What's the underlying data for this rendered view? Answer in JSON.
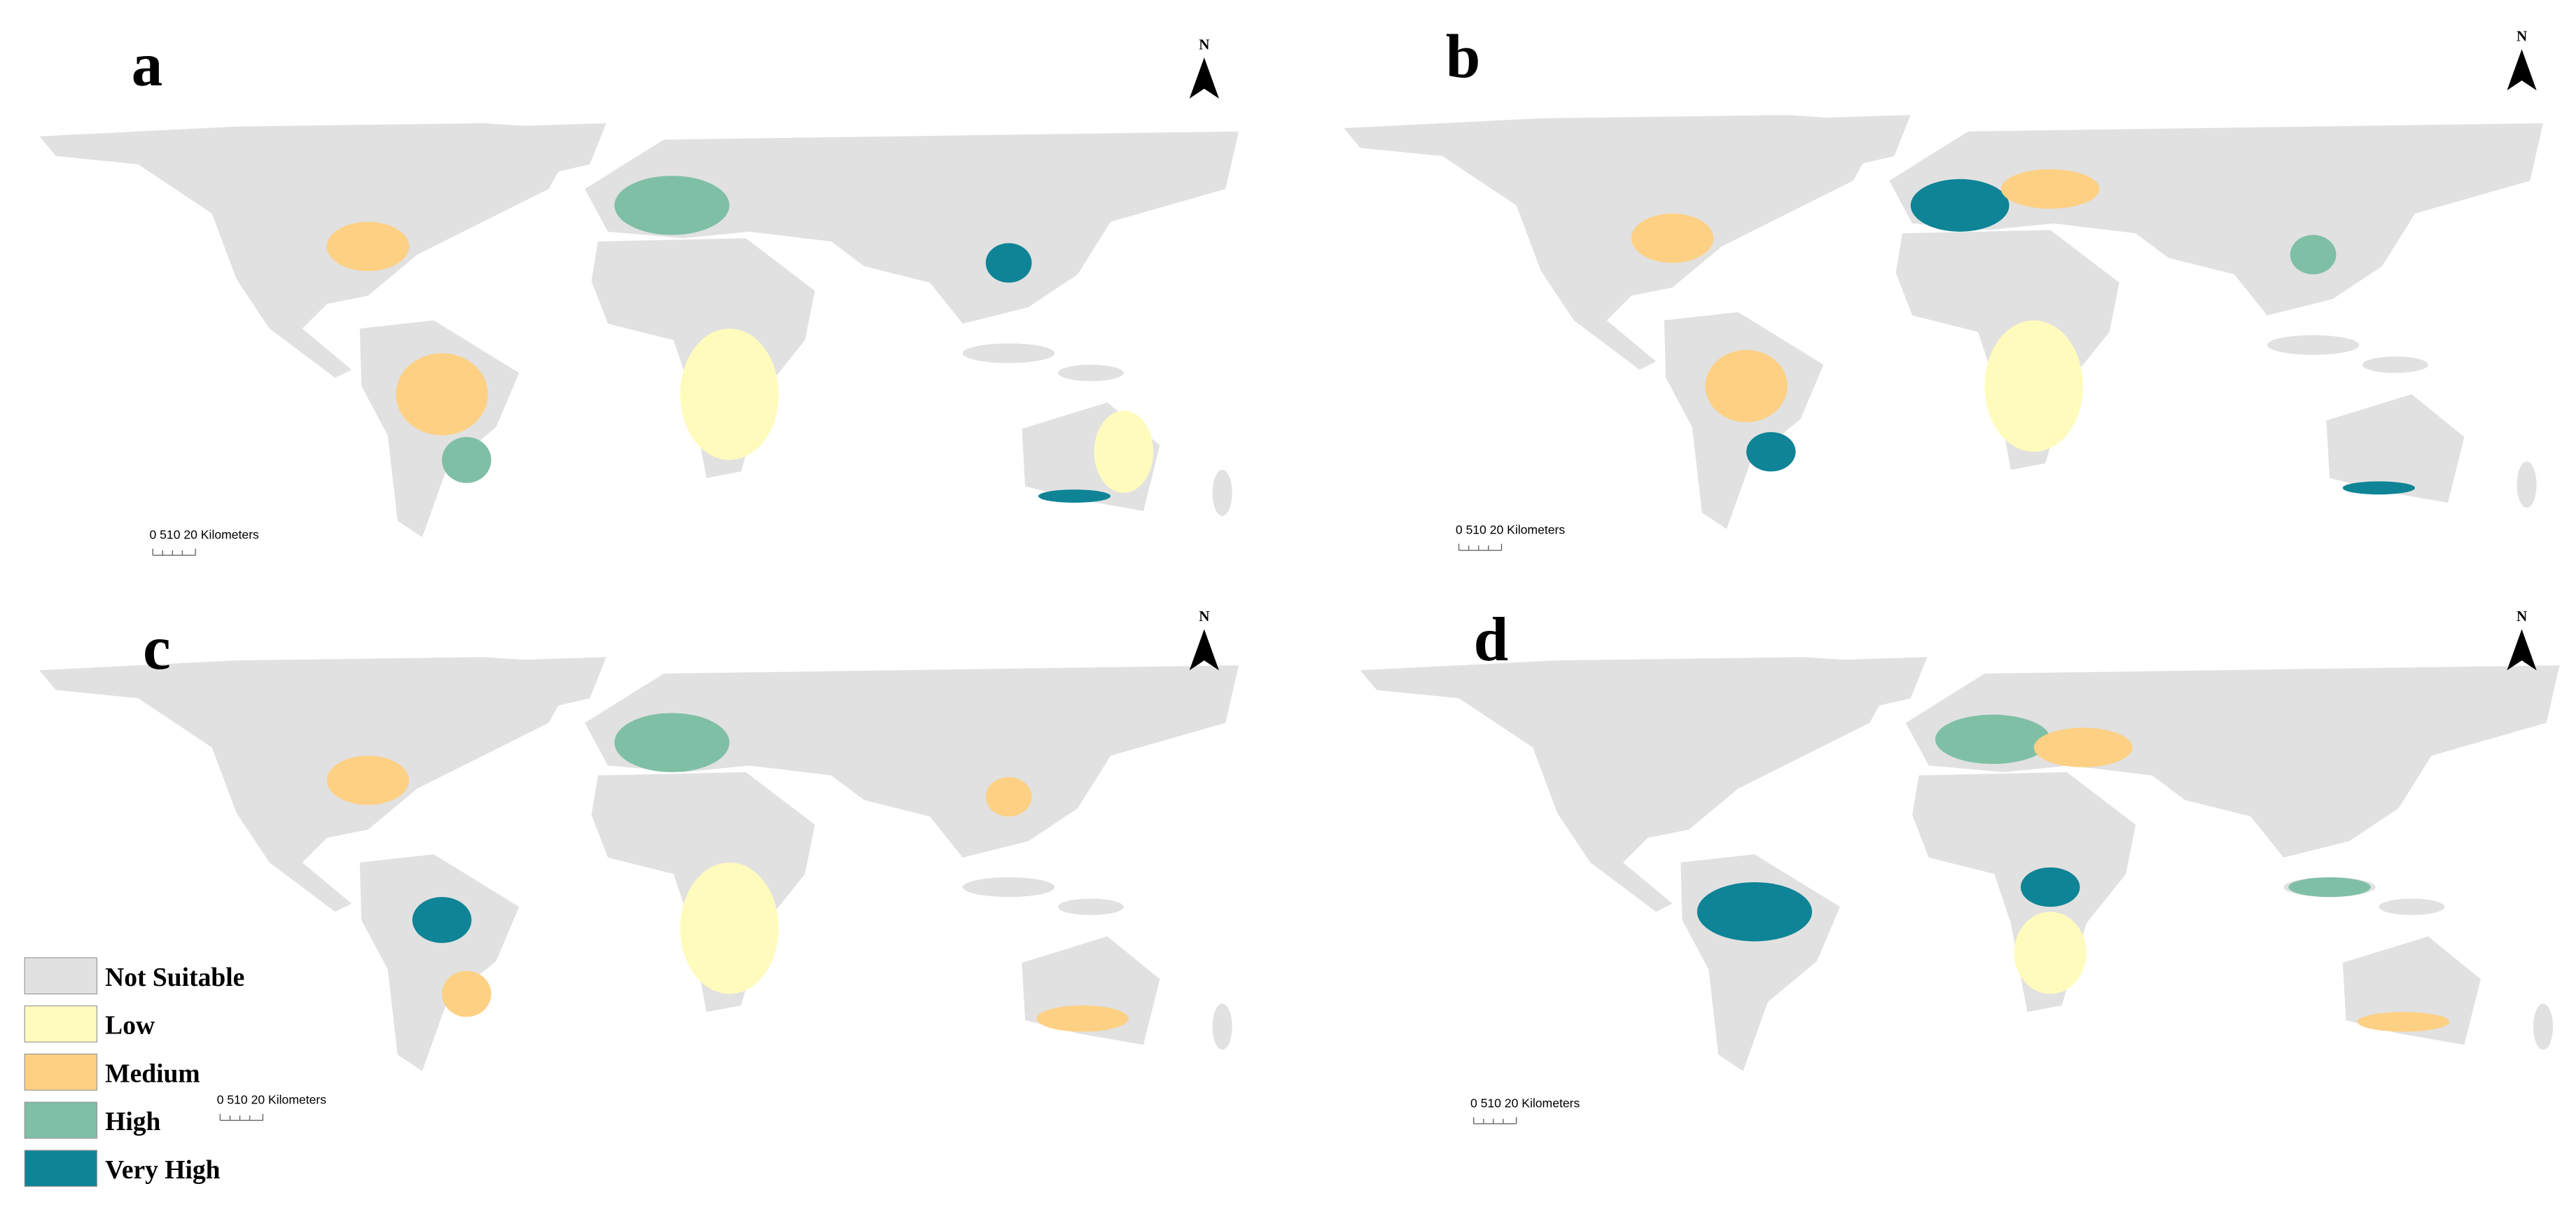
{
  "panels": [
    {
      "label": "a",
      "north": "N",
      "scale_bar": "0 510 20 Kilometers"
    },
    {
      "label": "b",
      "north": "N",
      "scale_bar": "0 510 20 Kilometers"
    },
    {
      "label": "c",
      "north": "N",
      "scale_bar": "0 510 20 Kilometers"
    },
    {
      "label": "d",
      "north": "N",
      "scale_bar": "0 510 20 Kilometers"
    }
  ],
  "legend": [
    {
      "label": "Not Suitable",
      "color": "#e1e1e1"
    },
    {
      "label": "Low",
      "color": "#fffbbd"
    },
    {
      "label": "Medium",
      "color": "#fdd083"
    },
    {
      "label": "High",
      "color": "#7fbfa6"
    },
    {
      "label": "Very High",
      "color": "#0e8496"
    }
  ]
}
